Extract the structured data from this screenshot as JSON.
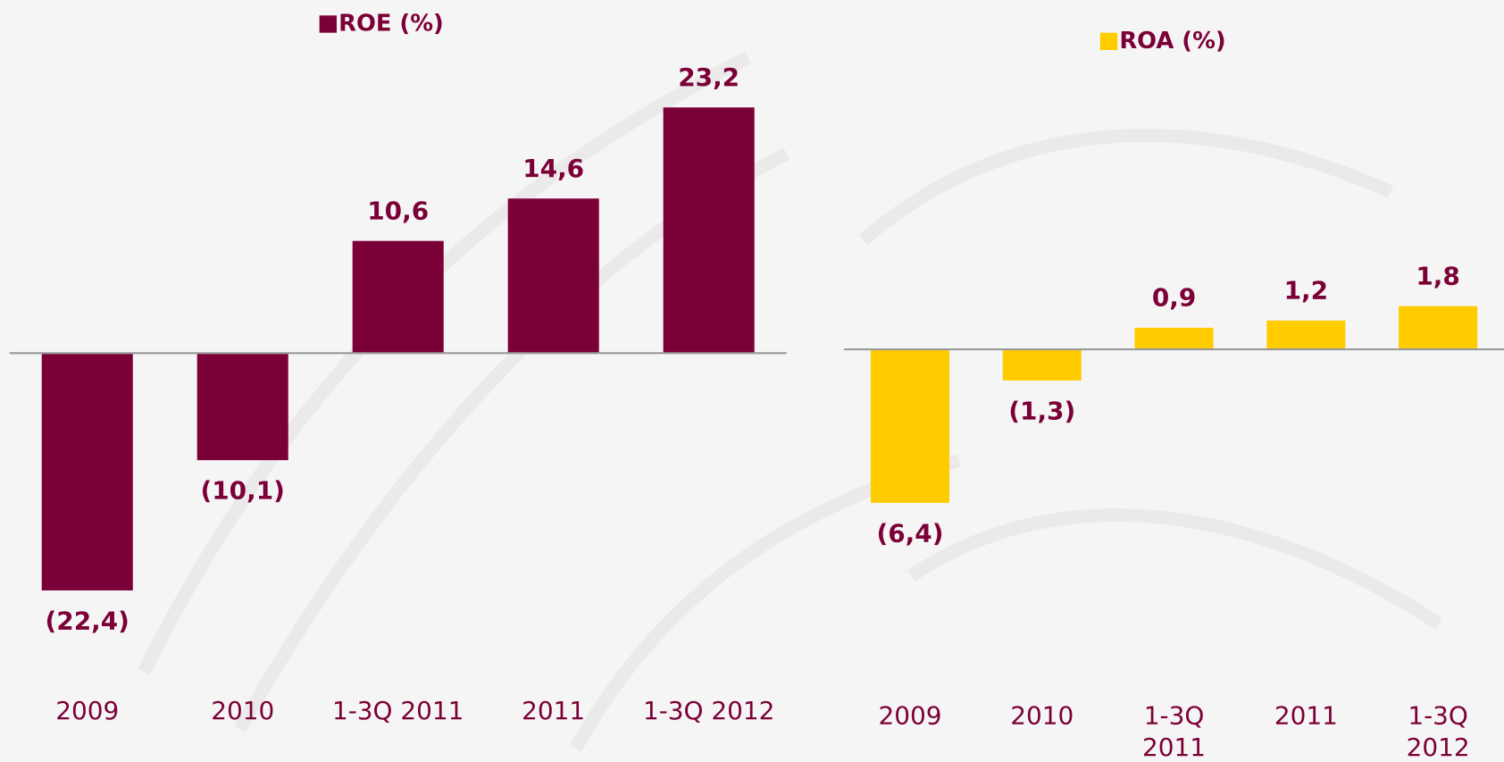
{
  "chart_data": [
    {
      "type": "bar",
      "categories": [
        "2009",
        "2010",
        "1-3Q 2011",
        "2011",
        "1-3Q 2012"
      ],
      "series": [
        {
          "name": "ROE (%)",
          "color": "#7b0037",
          "values": [
            -22.4,
            -10.1,
            10.6,
            14.6,
            23.2
          ],
          "value_labels": [
            "(22,4)",
            "(10,1)",
            "10,6",
            "14,6",
            "23,2"
          ]
        }
      ],
      "ylim": [
        -25,
        25
      ]
    },
    {
      "type": "bar",
      "categories": [
        "2009",
        "2010",
        "1-3Q 2011",
        "2011",
        "1-3Q 2012"
      ],
      "series": [
        {
          "name": "ROA (%)",
          "color": "#ffcc00",
          "values": [
            -6.4,
            -1.3,
            0.9,
            1.2,
            1.8
          ],
          "value_labels": [
            "(6,4)",
            "(1,3)",
            "0,9",
            "1,2",
            "1,8"
          ]
        }
      ],
      "ylim": [
        -10,
        10
      ]
    }
  ]
}
